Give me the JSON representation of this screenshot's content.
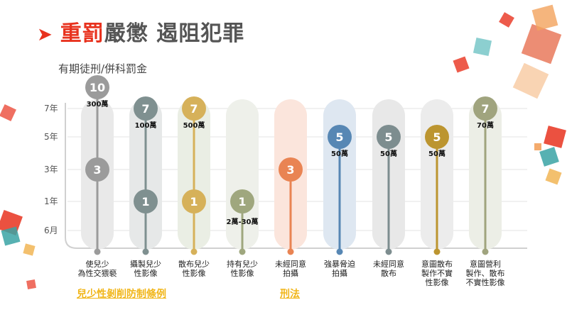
{
  "title": {
    "highlight": "重罰",
    "rest": "嚴懲  遏阻犯罪"
  },
  "subtitle": "有期徒刑/併科罰金",
  "footer": {
    "left": "兒少性剝削防制條例",
    "right": "刑法"
  },
  "colors": {
    "accent_red": "#e8321e",
    "footer_gold": "#f1b61a"
  },
  "chart_data": {
    "type": "dot-range",
    "y_ticks": [
      "6月",
      "1年",
      "3年",
      "5年",
      "7年"
    ],
    "categories": [
      "使兒少\n為性交猥褻",
      "攝製兒少\n性影像",
      "散布兒少\n性影像",
      "持有兒少\n性影像",
      "未經同意\n拍攝",
      "強暴脅迫\n拍攝",
      "未經同意\n散布",
      "意圖散布\n製作不實\n性影像",
      "意圖營利\n製作、散布\n不實性影像"
    ],
    "items": [
      {
        "max": 10,
        "min": 3,
        "fine": "300萬",
        "color": "#9b9b9b",
        "band": "#e9e9e9"
      },
      {
        "max": 7,
        "min": 1,
        "fine": "100萬",
        "color": "#7f9090",
        "band": "#e6e8e8"
      },
      {
        "max": 7,
        "min": 1,
        "fine": "500萬",
        "color": "#d6b15a",
        "band": "#eaeee4"
      },
      {
        "max": 1,
        "min": null,
        "fine": "2萬-30萬",
        "color": "#9fa77e",
        "band": "#eef0ea"
      },
      {
        "max": 3,
        "min": null,
        "fine": "",
        "color": "#e98453",
        "band": "#fbe5dc"
      },
      {
        "max": 5,
        "min": null,
        "fine": "50萬",
        "color": "#5787b4",
        "band": "#dee7f1"
      },
      {
        "max": 5,
        "min": null,
        "fine": "50萬",
        "color": "#7d8d8f",
        "band": "#e8e8e8"
      },
      {
        "max": 5,
        "min": null,
        "fine": "50萬",
        "color": "#bc9530",
        "band": "#ececec"
      },
      {
        "max": 7,
        "min": null,
        "fine": "70萬",
        "color": "#a0a47e",
        "band": "#eceee6"
      }
    ]
  }
}
